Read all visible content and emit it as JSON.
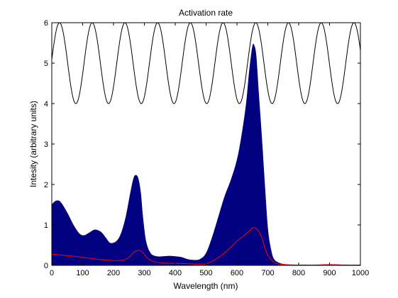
{
  "chart_data": {
    "type": "area",
    "title": "Activation rate",
    "xlabel": "Wavelength (nm)",
    "ylabel": "Intesity (arbitrary units)",
    "xlim": [
      0,
      1000
    ],
    "ylim": [
      0,
      6
    ],
    "xticks": [
      "0",
      "100",
      "200",
      "300",
      "400",
      "500",
      "600",
      "700",
      "800",
      "900",
      "1000"
    ],
    "yticks": [
      "0",
      "1",
      "2",
      "3",
      "4",
      "5",
      "6"
    ],
    "grid": false,
    "colors": {
      "fill": "#000080",
      "line": "#ff0000",
      "wave": "#000000"
    },
    "series": [
      {
        "kind": "filled",
        "x": [
          0,
          10,
          20,
          30,
          50,
          70,
          90,
          105,
          120,
          140,
          160,
          175,
          190,
          210,
          225,
          240,
          255,
          265,
          272,
          280,
          288,
          295,
          305,
          320,
          340,
          360,
          380,
          400,
          420,
          440,
          460,
          480,
          500,
          520,
          540,
          560,
          580,
          600,
          615,
          630,
          640,
          650,
          655,
          662,
          670,
          680,
          690,
          700,
          710,
          720,
          740,
          760,
          780,
          800,
          830,
          860,
          900,
          950,
          1000
        ],
        "y": [
          1.5,
          1.58,
          1.6,
          1.55,
          1.3,
          1.0,
          0.78,
          0.74,
          0.8,
          0.88,
          0.82,
          0.68,
          0.55,
          0.6,
          0.8,
          1.2,
          1.8,
          2.15,
          2.23,
          2.15,
          1.8,
          1.2,
          0.6,
          0.3,
          0.22,
          0.22,
          0.23,
          0.22,
          0.2,
          0.15,
          0.13,
          0.15,
          0.3,
          0.7,
          1.2,
          1.7,
          2.1,
          2.6,
          3.2,
          4.0,
          4.8,
          5.4,
          5.45,
          5.2,
          4.3,
          3.2,
          2.0,
          0.9,
          0.4,
          0.15,
          0.05,
          0.02,
          0.01,
          0.01,
          0.01,
          0.01,
          0.02,
          0.01,
          0.01
        ]
      },
      {
        "kind": "line",
        "x": [
          0,
          50,
          100,
          150,
          200,
          230,
          250,
          265,
          280,
          295,
          310,
          330,
          360,
          400,
          440,
          480,
          500,
          520,
          550,
          580,
          600,
          620,
          640,
          650,
          660,
          670,
          680,
          690,
          700,
          720,
          740,
          780,
          820,
          860,
          900,
          950,
          1000
        ],
        "y": [
          0.28,
          0.24,
          0.2,
          0.15,
          0.12,
          0.13,
          0.2,
          0.32,
          0.37,
          0.32,
          0.18,
          0.1,
          0.06,
          0.05,
          0.04,
          0.03,
          0.04,
          0.1,
          0.25,
          0.45,
          0.6,
          0.72,
          0.85,
          0.93,
          0.92,
          0.85,
          0.7,
          0.45,
          0.25,
          0.08,
          0.03,
          0.01,
          0.01,
          0.01,
          0.02,
          0.01,
          0.01
        ]
      },
      {
        "kind": "line",
        "function": "y = 5 + cos(2π(x − 25)/106)",
        "offset": 5,
        "amplitude": 1,
        "period": 106,
        "peak_x": 25
      }
    ]
  }
}
